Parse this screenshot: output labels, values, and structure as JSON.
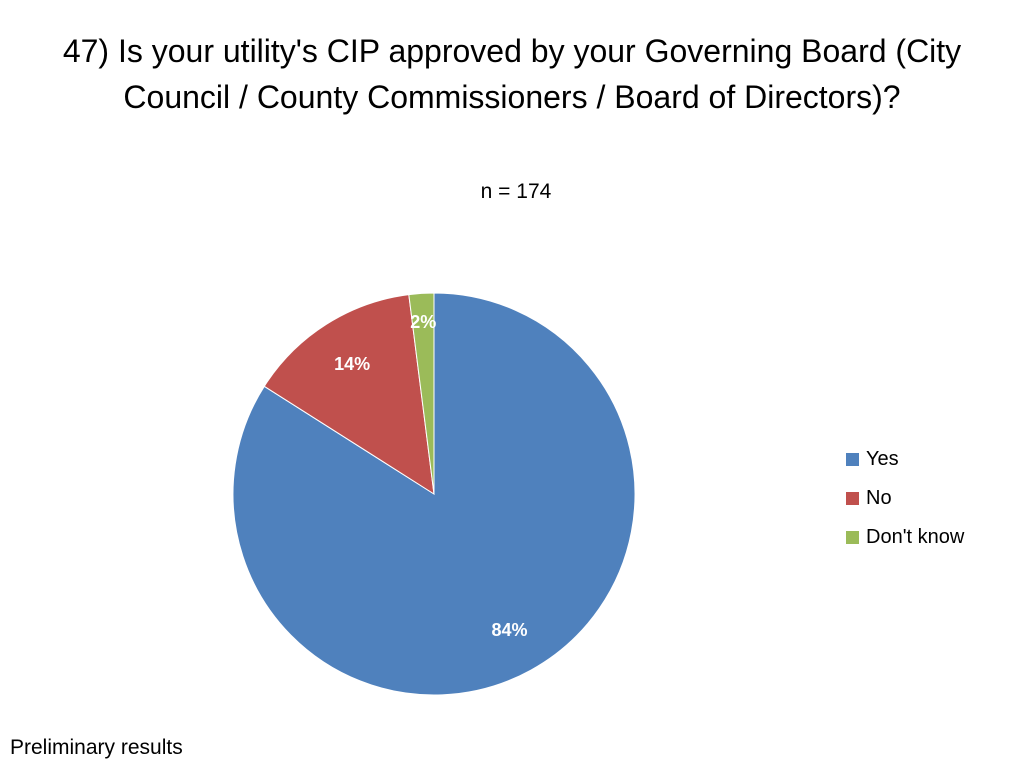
{
  "chart_data": {
    "type": "pie",
    "title": "47) Is your utility's CIP approved by your Governing Board (City Council / County Commissioners / Board of Directors)?",
    "subtitle": "n = 174",
    "categories": [
      "Yes",
      "No",
      "Don't know"
    ],
    "values": [
      84,
      14,
      2
    ],
    "labels": [
      "84%",
      "14%",
      "2%"
    ],
    "colors": [
      "#4F81BD",
      "#C0504D",
      "#9BBB59"
    ],
    "legend_position": "right"
  },
  "footer": {
    "note": "Preliminary results"
  }
}
